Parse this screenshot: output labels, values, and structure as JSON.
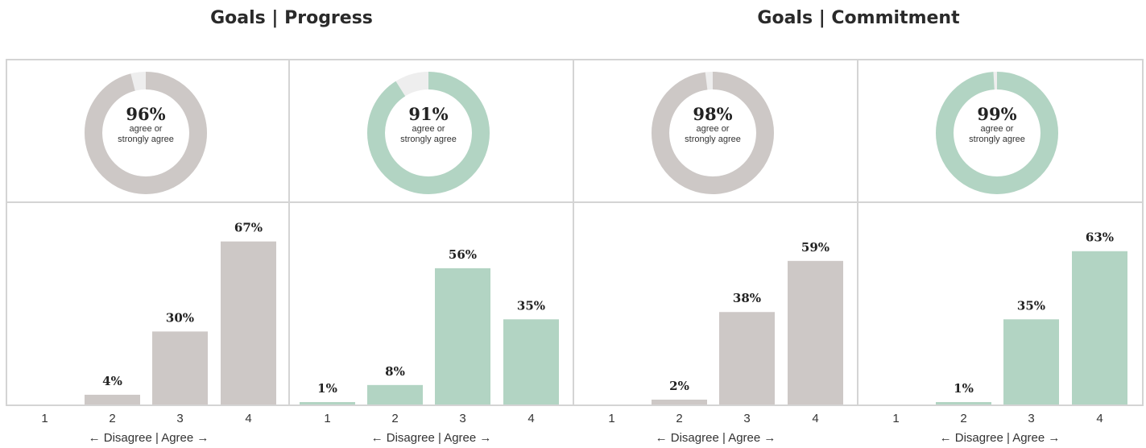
{
  "titles": {
    "left": "Goals | Progress",
    "right": "Goals | Commitment"
  },
  "colors": {
    "gray": "#cdc8c6",
    "green": "#b2d4c3",
    "remainder": "#eeeeee"
  },
  "chart_data": [
    {
      "type": "donut+bar",
      "color": "gray",
      "donut": {
        "value": 96,
        "label": "96%",
        "sub1": "agree or",
        "sub2": "strongly agree"
      },
      "categories": [
        "1",
        "2",
        "3",
        "4"
      ],
      "values": [
        0,
        4,
        30,
        67
      ],
      "labels": [
        "",
        "4%",
        "30%",
        "67%"
      ],
      "xlabel": "← Disagree | Agree →",
      "ylim": [
        0,
        70
      ]
    },
    {
      "type": "donut+bar",
      "color": "green",
      "donut": {
        "value": 91,
        "label": "91%",
        "sub1": "agree or",
        "sub2": "strongly agree"
      },
      "categories": [
        "1",
        "2",
        "3",
        "4"
      ],
      "values": [
        1,
        8,
        56,
        35
      ],
      "labels": [
        "1%",
        "8%",
        "56%",
        "35%"
      ],
      "xlabel": "← Disagree | Agree →",
      "ylim": [
        0,
        70
      ]
    },
    {
      "type": "donut+bar",
      "color": "gray",
      "donut": {
        "value": 98,
        "label": "98%",
        "sub1": "agree or",
        "sub2": "strongly agree"
      },
      "categories": [
        "1",
        "2",
        "3",
        "4"
      ],
      "values": [
        0,
        2,
        38,
        59
      ],
      "labels": [
        "",
        "2%",
        "38%",
        "59%"
      ],
      "xlabel": "← Disagree | Agree →",
      "ylim": [
        0,
        70
      ]
    },
    {
      "type": "donut+bar",
      "color": "green",
      "donut": {
        "value": 99,
        "label": "99%",
        "sub1": "agree or",
        "sub2": "strongly agree"
      },
      "categories": [
        "1",
        "2",
        "3",
        "4"
      ],
      "values": [
        0,
        1,
        35,
        63
      ],
      "labels": [
        "",
        "1%",
        "35%",
        "63%"
      ],
      "xlabel": "← Disagree | Agree →",
      "ylim": [
        0,
        70
      ]
    }
  ]
}
